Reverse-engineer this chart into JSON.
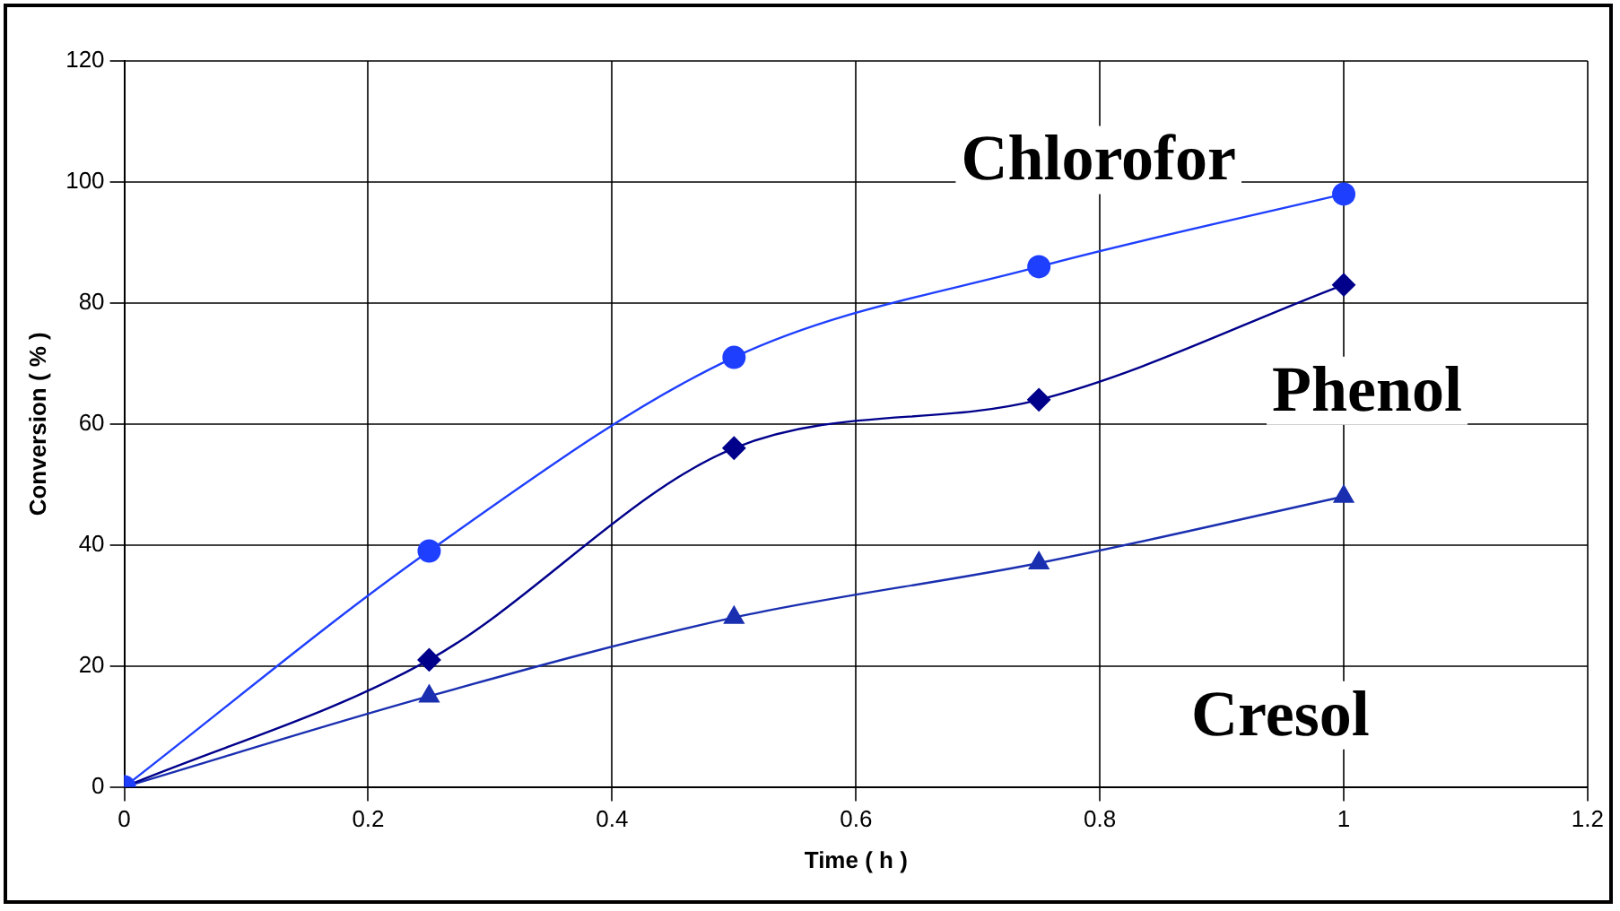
{
  "chart_data": {
    "type": "line",
    "xlabel": "Time ( h )",
    "ylabel": "Conversion ( % )",
    "x": [
      0,
      0.25,
      0.5,
      0.75,
      1
    ],
    "series": [
      {
        "name": "Chlorofor",
        "color": "#1f3fff",
        "marker": "circle",
        "values": [
          0,
          39,
          71,
          86,
          98
        ]
      },
      {
        "name": "Phenol",
        "color": "#00008b",
        "marker": "diamond",
        "values": [
          0,
          21,
          56,
          64,
          83
        ]
      },
      {
        "name": "Cresol",
        "color": "#1a2fb0",
        "marker": "triangle",
        "values": [
          0,
          15,
          28,
          37,
          48
        ]
      }
    ],
    "xlim": [
      0,
      1.2
    ],
    "xticks": [
      0,
      0.2,
      0.4,
      0.6,
      0.8,
      1,
      1.2
    ],
    "ylim": [
      0,
      120
    ],
    "yticks": [
      0,
      20,
      40,
      60,
      80,
      100,
      120
    ],
    "grid": true,
    "legend": false
  }
}
